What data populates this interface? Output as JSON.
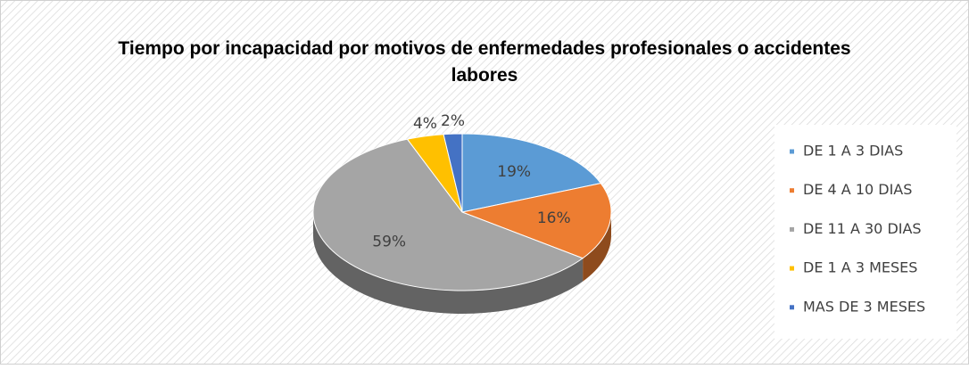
{
  "chart_data": {
    "type": "pie",
    "title": "Tiempo por incapacidad por motivos de enfermedades profesionales o accidentes labores",
    "categories": [
      "DE 1 A 3 DIAS",
      "DE 4 A 10 DIAS",
      "DE 11 A 30 DIAS",
      "DE 1 A 3 MESES",
      "MAS DE 3 MESES"
    ],
    "values": [
      19,
      16,
      59,
      4,
      2
    ],
    "value_labels": [
      "19%",
      "16%",
      "59%",
      "4%",
      "2%"
    ],
    "colors": [
      "#5b9bd5",
      "#ed7d31",
      "#a5a5a5",
      "#ffc000",
      "#4472c4"
    ],
    "legend": "right"
  }
}
